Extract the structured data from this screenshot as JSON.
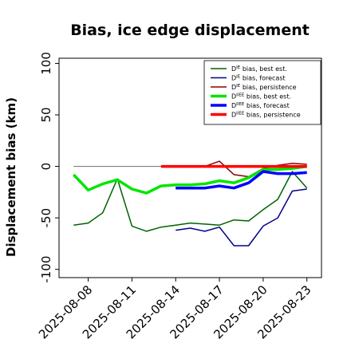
{
  "chart_data": {
    "type": "line",
    "title": "Bias, ice edge displacement",
    "xlabel": "",
    "ylabel": "Displacement bias (km)",
    "ylim": [
      -108,
      105
    ],
    "xlim": [
      "2025-08-06",
      "2025-08-24"
    ],
    "x_ticks": [
      "2025-08-08",
      "2025-08-11",
      "2025-08-14",
      "2025-08-17",
      "2025-08-20",
      "2025-08-23"
    ],
    "x_tick_colors": [
      "#000000",
      "#000000",
      "#228B22",
      "#000000",
      "#000000",
      "#000000"
    ],
    "y_ticks": [
      100,
      50,
      0,
      -50,
      -100
    ],
    "grid": false,
    "legend_position": "top-right",
    "zero_line": {
      "from": "2025-08-07",
      "to": "2025-08-23",
      "color": "#808080"
    },
    "series": [
      {
        "name": "D^IE bias, best est.",
        "legend_main": "D",
        "legend_sup": "IE",
        "legend_rest": " bias, best est.",
        "color": "#006400",
        "width": 1.5,
        "x": [
          "2025-08-07",
          "2025-08-08",
          "2025-08-09",
          "2025-08-10",
          "2025-08-11",
          "2025-08-12",
          "2025-08-13",
          "2025-08-14",
          "2025-08-15",
          "2025-08-16",
          "2025-08-17",
          "2025-08-18",
          "2025-08-19",
          "2025-08-20",
          "2025-08-21",
          "2025-08-22",
          "2025-08-23"
        ],
        "values": [
          -57,
          -55,
          -45,
          -12,
          -58,
          -63,
          -59,
          -57,
          -55,
          -56,
          -57,
          -52,
          -53,
          -42,
          -32,
          -5,
          -21
        ]
      },
      {
        "name": "D^IE bias, forecast",
        "legend_main": "D",
        "legend_sup": "IE",
        "legend_rest": " bias, forecast",
        "color": "#00008B",
        "width": 1.5,
        "x": [
          "2025-08-14",
          "2025-08-15",
          "2025-08-16",
          "2025-08-17",
          "2025-08-18",
          "2025-08-19",
          "2025-08-20",
          "2025-08-21",
          "2025-08-22",
          "2025-08-23"
        ],
        "values": [
          -62,
          -60,
          -63,
          -59,
          -77,
          -77,
          -58,
          -50,
          -24,
          -22
        ]
      },
      {
        "name": "D^IE bias, persistence",
        "legend_main": "D",
        "legend_sup": "IE",
        "legend_rest": " bias, persistence",
        "color": "#8B0000",
        "width": 1.5,
        "x": [
          "2025-08-13",
          "2025-08-14",
          "2025-08-15",
          "2025-08-16",
          "2025-08-17",
          "2025-08-18",
          "2025-08-19",
          "2025-08-20",
          "2025-08-21",
          "2025-08-22",
          "2025-08-23"
        ],
        "values": [
          0,
          0,
          0,
          0,
          5,
          -8,
          -10,
          -2,
          1,
          3,
          2
        ]
      },
      {
        "name": "D^IIEE bias, best est.",
        "legend_main": "D",
        "legend_sup": "IIEE",
        "legend_rest": " bias, best est.",
        "color": "#00E600",
        "width": 3.5,
        "x": [
          "2025-08-07",
          "2025-08-08",
          "2025-08-09",
          "2025-08-10",
          "2025-08-11",
          "2025-08-12",
          "2025-08-13",
          "2025-08-14",
          "2025-08-15",
          "2025-08-16",
          "2025-08-17",
          "2025-08-18",
          "2025-08-19",
          "2025-08-20",
          "2025-08-21",
          "2025-08-22",
          "2025-08-23"
        ],
        "values": [
          -8,
          -23,
          -17,
          -13,
          -22,
          -26,
          -19,
          -18,
          -18,
          -17,
          -14,
          -16,
          -11,
          -3,
          -3,
          -2,
          0
        ]
      },
      {
        "name": "D^IIEE bias, forecast",
        "legend_main": "D",
        "legend_sup": "IIEE",
        "legend_rest": " bias, forecast",
        "color": "#0000FF",
        "width": 3.5,
        "x": [
          "2025-08-14",
          "2025-08-15",
          "2025-08-16",
          "2025-08-17",
          "2025-08-18",
          "2025-08-19",
          "2025-08-20",
          "2025-08-21",
          "2025-08-22",
          "2025-08-23"
        ],
        "values": [
          -21,
          -21,
          -21,
          -19,
          -21,
          -16,
          -5,
          -7,
          -7,
          -6
        ]
      },
      {
        "name": "D^IIEE bias, persistence",
        "legend_main": "D",
        "legend_sup": "IIEE",
        "legend_rest": " bias, persistence",
        "color": "#FF0000",
        "width": 3.5,
        "x": [
          "2025-08-13",
          "2025-08-14",
          "2025-08-15",
          "2025-08-16",
          "2025-08-17",
          "2025-08-18",
          "2025-08-19",
          "2025-08-20",
          "2025-08-21",
          "2025-08-22",
          "2025-08-23"
        ],
        "values": [
          0,
          0,
          0,
          0,
          0,
          0,
          0,
          0,
          0,
          0,
          0
        ]
      }
    ]
  }
}
